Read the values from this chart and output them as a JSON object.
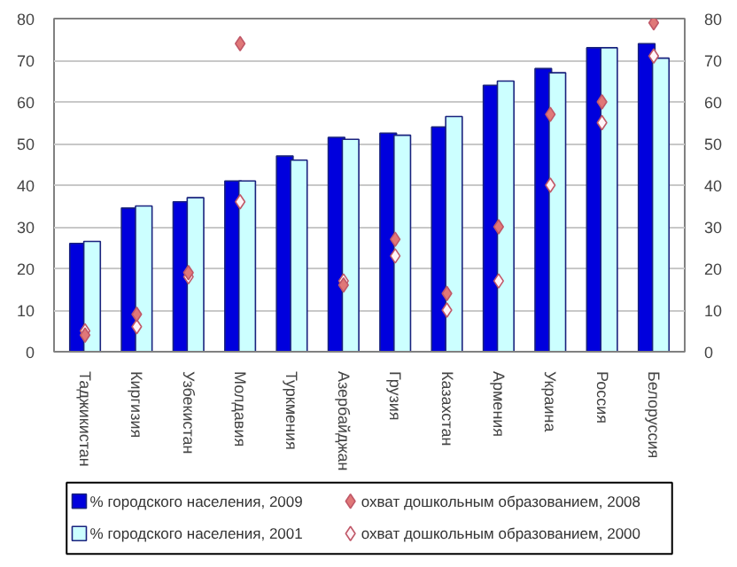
{
  "chart_data": {
    "type": "bar",
    "categories": [
      "Таджикистан",
      "Киргизия",
      "Узбекистан",
      "Молдавия",
      "Туркмения",
      "Азербайджан",
      "Грузия",
      "Казахстан",
      "Армения",
      "Украина",
      "Россия",
      "Белоруссия"
    ],
    "series": [
      {
        "name": "% городского населения, 2009",
        "color": "#0000dd",
        "values": [
          26,
          34.5,
          36,
          41,
          47,
          51.5,
          52.5,
          54,
          64,
          68,
          73,
          74
        ]
      },
      {
        "name": "% городского населения, 2001",
        "color": "#ccffff",
        "values": [
          26.5,
          35,
          37,
          41,
          46,
          51,
          52,
          56.5,
          65,
          67,
          73,
          70.5
        ]
      },
      {
        "name": "охват дошкольным образованием, 2008",
        "type": "scatter",
        "color": "#e07878",
        "values": [
          4,
          9,
          19,
          74,
          null,
          16,
          27,
          14,
          30,
          57,
          60,
          79
        ]
      },
      {
        "name": "охват дошкольным образованием, 2000",
        "type": "scatter",
        "color": "#fff4f8",
        "values": [
          5,
          6,
          18,
          36,
          null,
          17,
          23,
          10,
          17,
          40,
          55,
          71
        ]
      }
    ],
    "ylim": [
      0,
      80
    ],
    "yticks": [
      0,
      10,
      20,
      30,
      40,
      50,
      60,
      70,
      80
    ],
    "y2lim": [
      0,
      80
    ],
    "y2ticks": [
      0,
      10,
      20,
      30,
      40,
      50,
      60,
      70,
      80
    ],
    "grid": "y",
    "legend": "bottom",
    "marker": "diamond"
  }
}
